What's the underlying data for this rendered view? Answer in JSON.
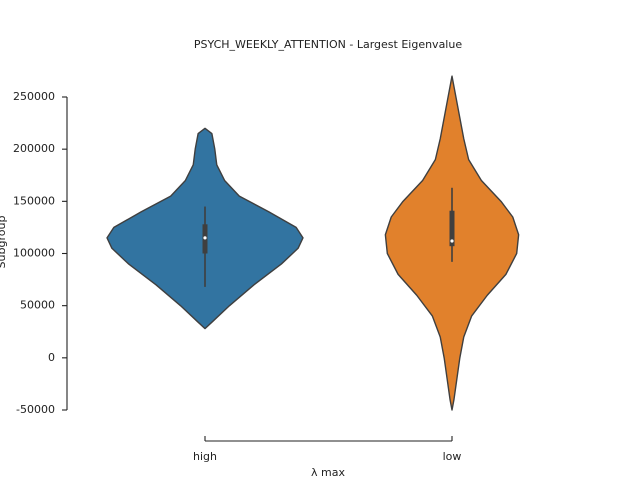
{
  "chart_data": {
    "type": "violin",
    "title": "PSYCH_WEEKLY_ATTENTION - Largest Eigenvalue",
    "x_label": "λ  max",
    "y_label": "Subgroup",
    "categories": [
      "high",
      "low"
    ],
    "ylim": [
      -50000,
      250000
    ],
    "yticks": [
      -50000,
      0,
      50000,
      100000,
      150000,
      200000,
      250000
    ],
    "violins": [
      {
        "color": "#3274a1",
        "density_y": [
          28000,
          35000,
          50000,
          70000,
          90000,
          105000,
          115000,
          125000,
          140000,
          155000,
          170000,
          185000,
          200000,
          215000,
          220000
        ],
        "density": [
          0,
          0.08,
          0.25,
          0.5,
          0.78,
          0.95,
          1.0,
          0.93,
          0.65,
          0.35,
          0.2,
          0.12,
          0.1,
          0.07,
          0
        ],
        "whisker_low": 68000,
        "q1": 100000,
        "median": 115000,
        "q3": 128000,
        "whisker_high": 145000
      },
      {
        "color": "#e1812c",
        "density_y": [
          -50000,
          -40000,
          -20000,
          0,
          20000,
          40000,
          60000,
          80000,
          100000,
          118000,
          135000,
          150000,
          170000,
          190000,
          210000,
          230000,
          250000,
          270000
        ],
        "density": [
          0,
          0.02,
          0.05,
          0.08,
          0.12,
          0.2,
          0.36,
          0.55,
          0.66,
          0.68,
          0.62,
          0.5,
          0.3,
          0.17,
          0.12,
          0.08,
          0.04,
          0
        ],
        "whisker_low": 92000,
        "q1": 107000,
        "median": 112000,
        "q3": 141000,
        "whisker_high": 163000
      }
    ]
  }
}
